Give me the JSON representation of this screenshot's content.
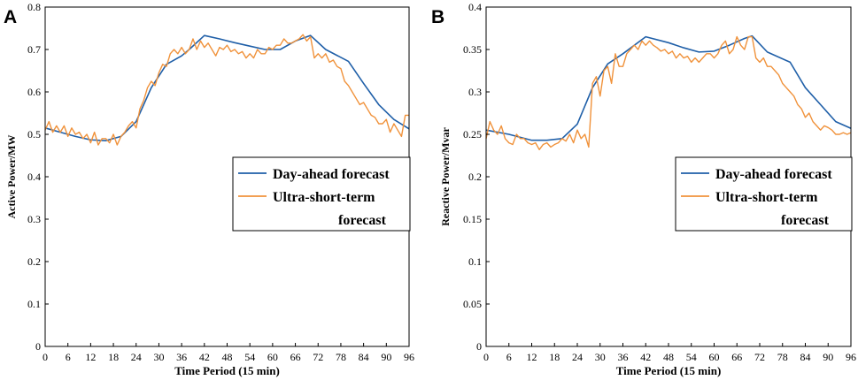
{
  "chart_data": [
    {
      "id": "A",
      "panel_label": "A",
      "type": "line",
      "title": "",
      "xlabel": "Time Period (15 min)",
      "ylabel": "Active Power/MW",
      "xlim": [
        0,
        96
      ],
      "ylim": [
        0,
        0.8
      ],
      "xticks": [
        0,
        6,
        12,
        18,
        24,
        30,
        36,
        42,
        48,
        54,
        60,
        66,
        72,
        78,
        84,
        90,
        96
      ],
      "yticks": [
        0,
        0.1,
        0.2,
        0.3,
        0.4,
        0.5,
        0.6,
        0.7,
        0.8
      ],
      "ytick_labels": [
        "0",
        "0.1",
        "0.2",
        "0.3",
        "0.4",
        "0.5",
        "0.6",
        "0.7",
        "0.8"
      ],
      "grid": false,
      "legend": {
        "position": "center-right",
        "entries": [
          {
            "series": "day-ahead",
            "lines": [
              "Day-ahead forecast"
            ]
          },
          {
            "series": "ultra-short",
            "lines": [
              "Ultra-short-term",
              "forecast"
            ]
          }
        ]
      },
      "series": [
        {
          "key": "day-ahead",
          "name": "Day-ahead forecast",
          "color": "#1f5fa8",
          "x": [
            0,
            4,
            8,
            12,
            16,
            20,
            24,
            28,
            32,
            36,
            38,
            42,
            46,
            50,
            54,
            58,
            62,
            66,
            70,
            74,
            80,
            84,
            88,
            92,
            96
          ],
          "y": [
            0.515,
            0.505,
            0.495,
            0.487,
            0.485,
            0.495,
            0.53,
            0.61,
            0.665,
            0.685,
            0.7,
            0.733,
            0.725,
            0.716,
            0.708,
            0.7,
            0.7,
            0.72,
            0.733,
            0.7,
            0.672,
            0.62,
            0.57,
            0.535,
            0.513
          ]
        },
        {
          "key": "ultra-short",
          "name": "Ultra-short-term forecast",
          "color": "#f0923b",
          "x": [
            0,
            1,
            2,
            3,
            4,
            5,
            6,
            7,
            8,
            9,
            10,
            11,
            12,
            13,
            14,
            15,
            16,
            17,
            18,
            19,
            20,
            21,
            22,
            23,
            24,
            25,
            26,
            27,
            28,
            29,
            30,
            31,
            32,
            33,
            34,
            35,
            36,
            37,
            38,
            39,
            40,
            41,
            42,
            43,
            44,
            45,
            46,
            47,
            48,
            49,
            50,
            51,
            52,
            53,
            54,
            55,
            56,
            57,
            58,
            59,
            60,
            61,
            62,
            63,
            64,
            65,
            66,
            67,
            68,
            69,
            70,
            71,
            72,
            73,
            74,
            75,
            76,
            77,
            78,
            79,
            80,
            81,
            82,
            83,
            84,
            85,
            86,
            87,
            88,
            89,
            90,
            91,
            92,
            93,
            94,
            95,
            96
          ],
          "y": [
            0.51,
            0.53,
            0.505,
            0.52,
            0.505,
            0.52,
            0.495,
            0.515,
            0.5,
            0.505,
            0.49,
            0.5,
            0.48,
            0.505,
            0.475,
            0.49,
            0.49,
            0.48,
            0.5,
            0.475,
            0.495,
            0.505,
            0.52,
            0.53,
            0.515,
            0.56,
            0.58,
            0.61,
            0.625,
            0.615,
            0.645,
            0.665,
            0.66,
            0.69,
            0.7,
            0.69,
            0.705,
            0.69,
            0.7,
            0.725,
            0.7,
            0.72,
            0.705,
            0.715,
            0.7,
            0.685,
            0.705,
            0.7,
            0.71,
            0.695,
            0.7,
            0.69,
            0.695,
            0.68,
            0.69,
            0.68,
            0.7,
            0.69,
            0.69,
            0.705,
            0.7,
            0.71,
            0.71,
            0.725,
            0.715,
            0.715,
            0.72,
            0.725,
            0.735,
            0.72,
            0.73,
            0.68,
            0.69,
            0.68,
            0.69,
            0.67,
            0.675,
            0.66,
            0.655,
            0.625,
            0.615,
            0.6,
            0.585,
            0.57,
            0.575,
            0.56,
            0.545,
            0.54,
            0.525,
            0.525,
            0.535,
            0.505,
            0.525,
            0.51,
            0.495,
            0.545,
            0.545
          ]
        }
      ]
    },
    {
      "id": "B",
      "panel_label": "B",
      "type": "line",
      "title": "",
      "xlabel": "Time Period (15 min)",
      "ylabel": "Reactive Power/Mvar",
      "xlim": [
        0,
        96
      ],
      "ylim": [
        0,
        0.4
      ],
      "xticks": [
        0,
        6,
        12,
        18,
        24,
        30,
        36,
        42,
        48,
        54,
        60,
        66,
        72,
        78,
        84,
        90,
        96
      ],
      "yticks": [
        0,
        0.05,
        0.1,
        0.15,
        0.2,
        0.25,
        0.3,
        0.35,
        0.4
      ],
      "ytick_labels": [
        "0",
        "0.05",
        "0.1",
        "0.15",
        "0.2",
        "0.25",
        "0.3",
        "0.35",
        "0.4"
      ],
      "grid": false,
      "legend": {
        "position": "center-right",
        "entries": [
          {
            "series": "day-ahead",
            "lines": [
              "Day-ahead forecast"
            ]
          },
          {
            "series": "ultra-short",
            "lines": [
              "Ultra-short-term",
              "forecast"
            ]
          }
        ]
      },
      "series": [
        {
          "key": "day-ahead",
          "name": "Day-ahead forecast",
          "color": "#1f5fa8",
          "x": [
            0,
            6,
            12,
            16,
            20,
            24,
            28,
            32,
            36,
            42,
            48,
            52,
            56,
            60,
            64,
            68,
            70,
            74,
            80,
            84,
            88,
            92,
            96
          ],
          "y": [
            0.255,
            0.25,
            0.243,
            0.243,
            0.245,
            0.262,
            0.305,
            0.333,
            0.345,
            0.365,
            0.358,
            0.352,
            0.347,
            0.348,
            0.355,
            0.363,
            0.366,
            0.347,
            0.335,
            0.305,
            0.285,
            0.265,
            0.257
          ]
        },
        {
          "key": "ultra-short",
          "name": "Ultra-short-term forecast",
          "color": "#f0923b",
          "x": [
            0,
            1,
            2,
            3,
            4,
            5,
            6,
            7,
            8,
            9,
            10,
            11,
            12,
            13,
            14,
            15,
            16,
            17,
            18,
            19,
            20,
            21,
            22,
            23,
            24,
            25,
            26,
            27,
            28,
            29,
            30,
            31,
            32,
            33,
            34,
            35,
            36,
            37,
            38,
            39,
            40,
            41,
            42,
            43,
            44,
            45,
            46,
            47,
            48,
            49,
            50,
            51,
            52,
            53,
            54,
            55,
            56,
            57,
            58,
            59,
            60,
            61,
            62,
            63,
            64,
            65,
            66,
            67,
            68,
            69,
            70,
            71,
            72,
            73,
            74,
            75,
            76,
            77,
            78,
            79,
            80,
            81,
            82,
            83,
            84,
            85,
            86,
            87,
            88,
            89,
            90,
            91,
            92,
            93,
            94,
            95,
            96
          ],
          "y": [
            0.245,
            0.265,
            0.255,
            0.25,
            0.26,
            0.245,
            0.24,
            0.238,
            0.25,
            0.245,
            0.245,
            0.24,
            0.238,
            0.24,
            0.232,
            0.238,
            0.24,
            0.235,
            0.238,
            0.24,
            0.245,
            0.242,
            0.25,
            0.24,
            0.255,
            0.245,
            0.25,
            0.235,
            0.31,
            0.318,
            0.295,
            0.325,
            0.33,
            0.31,
            0.345,
            0.33,
            0.33,
            0.345,
            0.35,
            0.355,
            0.35,
            0.36,
            0.355,
            0.36,
            0.355,
            0.352,
            0.348,
            0.35,
            0.345,
            0.348,
            0.34,
            0.345,
            0.34,
            0.342,
            0.335,
            0.34,
            0.335,
            0.34,
            0.345,
            0.345,
            0.34,
            0.345,
            0.355,
            0.36,
            0.345,
            0.35,
            0.365,
            0.355,
            0.35,
            0.365,
            0.365,
            0.34,
            0.335,
            0.34,
            0.33,
            0.33,
            0.325,
            0.32,
            0.31,
            0.305,
            0.3,
            0.295,
            0.285,
            0.28,
            0.27,
            0.275,
            0.265,
            0.26,
            0.255,
            0.26,
            0.258,
            0.255,
            0.25,
            0.25,
            0.252,
            0.25,
            0.252
          ]
        }
      ]
    }
  ]
}
